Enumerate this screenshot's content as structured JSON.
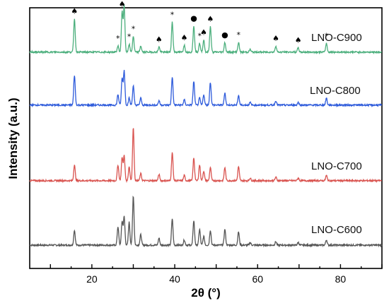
{
  "chart_data": {
    "type": "line",
    "xlabel": "2θ (°)",
    "ylabel": "Intensity (a.u.)",
    "xlim": [
      5,
      90
    ],
    "x_ticks": [
      20,
      40,
      60,
      80
    ],
    "y_ticks_shown": false,
    "grid": false,
    "legend": "none (series labelled at right of each trace)",
    "peak_positions": [
      15.8,
      26.3,
      27.3,
      27.8,
      29.0,
      30.0,
      31.8,
      36.2,
      39.4,
      42.3,
      44.6,
      46.0,
      47.0,
      48.6,
      52.1,
      55.4,
      58.2,
      64.4,
      69.8,
      76.6
    ],
    "series": [
      {
        "name": "LNO-C600",
        "color": "#555555",
        "baseline": 0.2,
        "peak_heights": [
          0.85,
          1.05,
          1.35,
          1.6,
          1.3,
          2.8,
          0.6,
          0.4,
          1.5,
          0.3,
          1.4,
          0.9,
          0.5,
          0.85,
          0.9,
          0.75,
          0.15,
          0.2,
          0.15,
          0.3
        ]
      },
      {
        "name": "LNO-C700",
        "color": "#d9534f",
        "baseline": 0.25,
        "peak_heights": [
          0.9,
          0.9,
          1.3,
          1.4,
          0.8,
          3.0,
          0.4,
          0.35,
          1.6,
          0.3,
          1.3,
          0.9,
          0.55,
          0.75,
          0.75,
          0.8,
          0.15,
          0.2,
          0.15,
          0.3
        ]
      },
      {
        "name": "LNO-C800",
        "color": "#2e5bdb",
        "baseline": 0.25,
        "peak_heights": [
          1.7,
          0.6,
          1.5,
          1.95,
          0.4,
          1.1,
          0.4,
          0.25,
          1.6,
          0.3,
          1.35,
          0.4,
          0.6,
          1.3,
          0.7,
          0.55,
          0.15,
          0.25,
          0.15,
          0.4
        ]
      },
      {
        "name": "LNO-C900",
        "color": "#4caf7d",
        "baseline": 0.25,
        "peak_heights": [
          1.9,
          0.35,
          2.3,
          2.6,
          0.45,
          0.9,
          0.35,
          0.3,
          1.7,
          0.4,
          1.5,
          0.5,
          0.7,
          1.45,
          0.55,
          0.55,
          0.15,
          0.35,
          0.25,
          0.5
        ]
      }
    ],
    "markers": [
      {
        "symbol": "♠",
        "x": 15.8
      },
      {
        "symbol": "*",
        "x": 26.3
      },
      {
        "symbol": "♠",
        "x": 27.3
      },
      {
        "symbol": "♠",
        "x": 27.9
      },
      {
        "symbol": "*",
        "x": 29.0
      },
      {
        "symbol": "*",
        "x": 30.0
      },
      {
        "symbol": "♠",
        "x": 36.2
      },
      {
        "symbol": "*",
        "x": 39.4
      },
      {
        "symbol": "♠",
        "x": 42.3
      },
      {
        "symbol": "●",
        "x": 44.6
      },
      {
        "symbol": "*",
        "x": 46.0
      },
      {
        "symbol": "♠",
        "x": 47.0
      },
      {
        "symbol": "♠",
        "x": 48.6
      },
      {
        "symbol": "●",
        "x": 52.1
      },
      {
        "symbol": "*",
        "x": 55.4
      },
      {
        "symbol": "♠",
        "x": 64.4
      },
      {
        "symbol": "♠",
        "x": 69.8
      },
      {
        "symbol": "*",
        "x": 76.6
      }
    ]
  }
}
